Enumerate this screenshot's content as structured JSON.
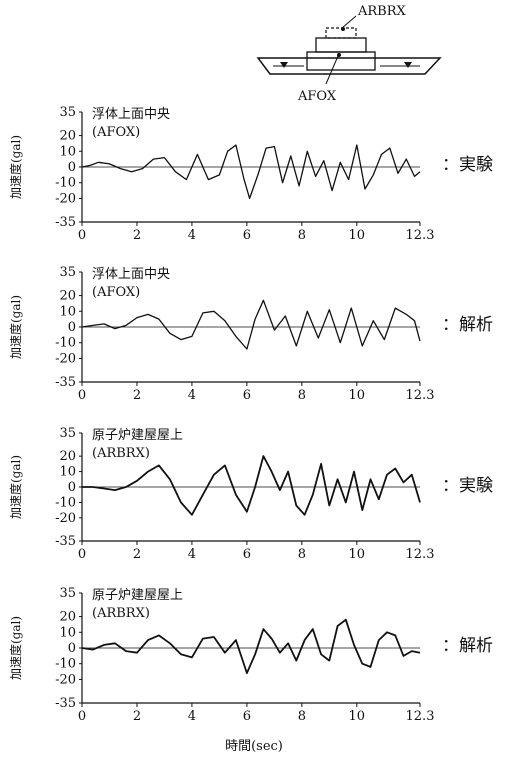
{
  "diagram": {
    "label_top": "ARBRX",
    "label_bottom": "AFOX"
  },
  "xlabel": "時間(sec)",
  "chart_data": [
    {
      "type": "line",
      "title": "浮体上面中央",
      "subtitle": "(AFOX)",
      "side_label": "：実験",
      "ylabel": "加速度(gal)",
      "xlim": [
        0,
        12.3
      ],
      "ylim": [
        -35,
        35
      ],
      "yticks": [
        "35",
        "20",
        "10",
        "0",
        "-10",
        "-20",
        "-35"
      ],
      "xticks": [
        "0",
        "2",
        "4",
        "6",
        "8",
        "10",
        "12.3"
      ],
      "series": [
        {
          "x": [
            0,
            0.3,
            0.6,
            1.0,
            1.4,
            1.8,
            2.2,
            2.6,
            3.0,
            3.4,
            3.8,
            4.2,
            4.6,
            5.0,
            5.3,
            5.6,
            5.9,
            6.1,
            6.4,
            6.7,
            7.0,
            7.3,
            7.6,
            7.9,
            8.2,
            8.5,
            8.8,
            9.1,
            9.4,
            9.7,
            10.0,
            10.3,
            10.6,
            10.9,
            11.2,
            11.5,
            11.8,
            12.1,
            12.3
          ],
          "y": [
            0,
            1,
            3,
            2,
            -1,
            -3,
            -1,
            5,
            6,
            -3,
            -8,
            8,
            -8,
            -5,
            10,
            14,
            -8,
            -20,
            -5,
            12,
            13,
            -10,
            7,
            -12,
            10,
            -6,
            4,
            -15,
            3,
            -8,
            14,
            -14,
            -5,
            8,
            12,
            -4,
            5,
            -6,
            -3
          ]
        }
      ]
    },
    {
      "type": "line",
      "title": "浮体上面中央",
      "subtitle": "(AFOX)",
      "side_label": "：解析",
      "ylabel": "加速度(gal)",
      "xlim": [
        0,
        12.3
      ],
      "ylim": [
        -35,
        35
      ],
      "yticks": [
        "35",
        "20",
        "10",
        "0",
        "-10",
        "-20",
        "-35"
      ],
      "xticks": [
        "0",
        "2",
        "4",
        "6",
        "8",
        "10",
        "12.3"
      ],
      "series": [
        {
          "x": [
            0,
            0.4,
            0.8,
            1.2,
            1.6,
            2.0,
            2.4,
            2.8,
            3.2,
            3.6,
            4.0,
            4.4,
            4.8,
            5.2,
            5.6,
            6.0,
            6.3,
            6.6,
            7.0,
            7.4,
            7.8,
            8.2,
            8.6,
            9.0,
            9.4,
            9.8,
            10.2,
            10.6,
            11.0,
            11.4,
            11.8,
            12.1,
            12.3
          ],
          "y": [
            0,
            1,
            2,
            -1,
            1,
            6,
            8,
            5,
            -4,
            -8,
            -6,
            9,
            10,
            4,
            -6,
            -14,
            5,
            17,
            -2,
            7,
            -12,
            10,
            -7,
            11,
            -10,
            12,
            -12,
            4,
            -8,
            12,
            8,
            4,
            -9
          ]
        }
      ]
    },
    {
      "type": "line",
      "title": "原子炉建屋屋上",
      "subtitle": "(ARBRX)",
      "side_label": "：実験",
      "ylabel": "加速度(gal)",
      "xlim": [
        0,
        12.3
      ],
      "ylim": [
        -35,
        35
      ],
      "yticks": [
        "35",
        "20",
        "10",
        "0",
        "-10",
        "-20",
        "-35"
      ],
      "xticks": [
        "0",
        "2",
        "4",
        "6",
        "8",
        "10",
        "12.3"
      ],
      "series": [
        {
          "x": [
            0,
            0.4,
            0.8,
            1.2,
            1.6,
            2.0,
            2.4,
            2.8,
            3.2,
            3.6,
            4.0,
            4.4,
            4.8,
            5.2,
            5.6,
            6.0,
            6.3,
            6.6,
            6.9,
            7.2,
            7.5,
            7.8,
            8.1,
            8.4,
            8.7,
            9.0,
            9.3,
            9.6,
            9.9,
            10.2,
            10.5,
            10.8,
            11.1,
            11.4,
            11.7,
            12.0,
            12.3
          ],
          "y": [
            0,
            0,
            -1,
            -2,
            0,
            4,
            10,
            14,
            5,
            -10,
            -18,
            -5,
            8,
            14,
            -5,
            -16,
            0,
            20,
            10,
            -2,
            10,
            -12,
            -18,
            -5,
            15,
            -12,
            5,
            -10,
            10,
            -15,
            5,
            -8,
            8,
            12,
            3,
            8,
            -10
          ]
        }
      ]
    },
    {
      "type": "line",
      "title": "原子炉建屋屋上",
      "subtitle": "(ARBRX)",
      "side_label": "：解析",
      "ylabel": "加速度(gal)",
      "xlim": [
        0,
        12.3
      ],
      "ylim": [
        -35,
        35
      ],
      "yticks": [
        "35",
        "20",
        "10",
        "0",
        "-10",
        "-20",
        "-35"
      ],
      "xticks": [
        "0",
        "2",
        "4",
        "6",
        "8",
        "10",
        "12.3"
      ],
      "series": [
        {
          "x": [
            0,
            0.4,
            0.8,
            1.2,
            1.6,
            2.0,
            2.4,
            2.8,
            3.2,
            3.6,
            4.0,
            4.4,
            4.8,
            5.2,
            5.6,
            6.0,
            6.3,
            6.6,
            6.9,
            7.2,
            7.5,
            7.8,
            8.1,
            8.4,
            8.7,
            9.0,
            9.3,
            9.6,
            9.9,
            10.2,
            10.5,
            10.8,
            11.1,
            11.4,
            11.7,
            12.0,
            12.3
          ],
          "y": [
            0,
            -1,
            2,
            3,
            -2,
            -3,
            5,
            8,
            3,
            -4,
            -6,
            6,
            7,
            -3,
            5,
            -16,
            -4,
            12,
            6,
            -3,
            3,
            -8,
            5,
            12,
            -4,
            -8,
            14,
            18,
            2,
            -10,
            -12,
            5,
            10,
            8,
            -5,
            -2,
            -3
          ]
        }
      ]
    }
  ]
}
